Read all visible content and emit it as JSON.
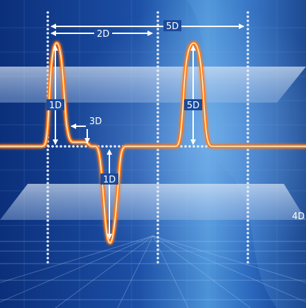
{
  "labels": {
    "top_5d": "5D",
    "top_2d": "2D",
    "left_1d": "1D",
    "right_5d": "5D",
    "step_3d": "3D",
    "neg_1d": "1D",
    "plane_4d": "4D"
  },
  "colors": {
    "background_dark": "#0a2a6e",
    "background_light": "#3f8fd6",
    "waveform": "#ff7a1a",
    "waveform_core": "#fff1c8",
    "plane": "#c9dcf2",
    "dots": "#e8eef8"
  }
}
